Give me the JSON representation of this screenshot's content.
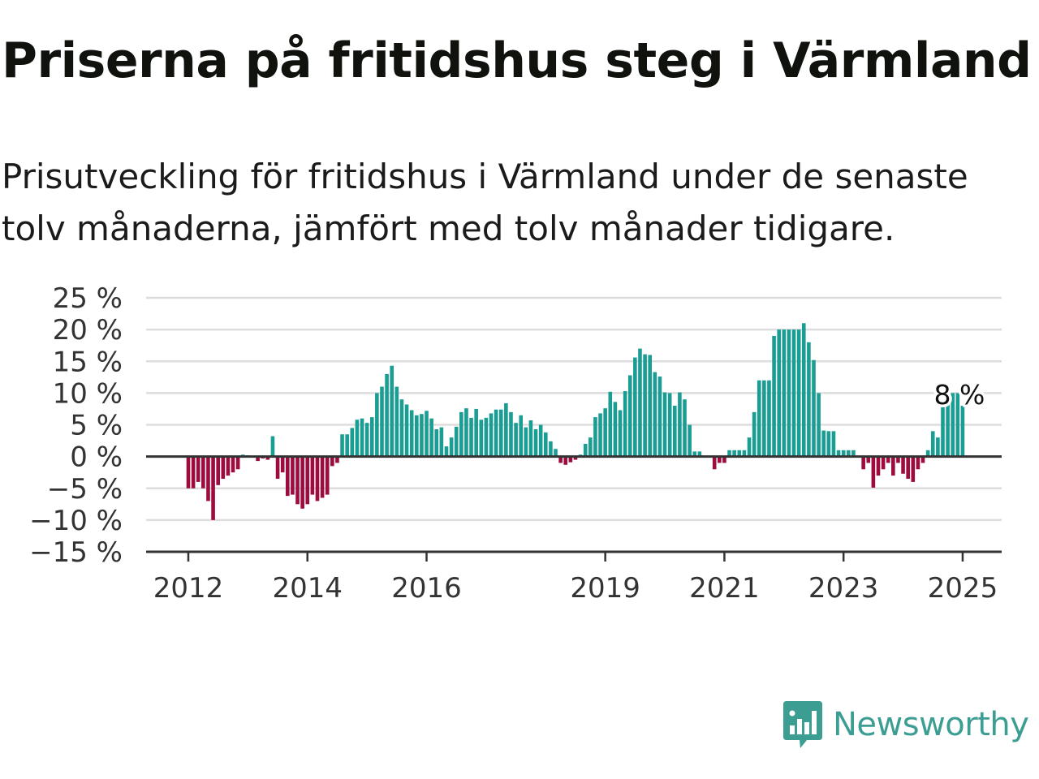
{
  "title": "Priserna på fritidshus steg i Värmland",
  "subtitle": "Prisutveckling för fritidshus i Värmland under de senaste tolv månaderna, jämfört med tolv månader tidigare.",
  "brand": {
    "name": "Newsworthy",
    "color": "#3c9e93"
  },
  "colors": {
    "positive": "#1a9e94",
    "negative": "#9e0b3e",
    "grid": "#dddddd",
    "axis": "#333333"
  },
  "chart_data": {
    "type": "bar",
    "frequency": "monthly",
    "start": "2012-01",
    "end": "2025-01",
    "ylim": [
      -15,
      25
    ],
    "yticks": [
      25,
      20,
      15,
      10,
      5,
      0,
      -5,
      -10,
      -15
    ],
    "ytick_labels": [
      "25 %",
      "20 %",
      "15 %",
      "10 %",
      "5 %",
      "0 %",
      "−5 %",
      "−10 %",
      "−15 %"
    ],
    "xtick_labels": [
      "2012",
      "2014",
      "2016",
      "2019",
      "2021",
      "2023",
      "2025"
    ],
    "grid": true,
    "last_value_label": "8 %",
    "values": [
      -5,
      -5,
      -4,
      -5,
      -7,
      -10,
      -4.5,
      -3.5,
      -3,
      -2.5,
      -2,
      0.3,
      0.2,
      0,
      -0.7,
      -0.3,
      -0.5,
      3.2,
      -3.5,
      -2.5,
      -6.2,
      -6,
      -7.5,
      -8.2,
      -7.5,
      -6,
      -7,
      -6.5,
      -6,
      -1.5,
      -1,
      3.5,
      3.5,
      4.5,
      5.8,
      6,
      5.3,
      6.2,
      10,
      11,
      13,
      14.3,
      11,
      9,
      8.2,
      7.3,
      6.5,
      6.7,
      7.2,
      6,
      4.3,
      4.6,
      1.6,
      3,
      4.7,
      7,
      7.6,
      6.1,
      7.5,
      5.8,
      6.1,
      6.8,
      7.4,
      7.4,
      8.4,
      7,
      5.3,
      6.5,
      4.6,
      5.7,
      4.3,
      5,
      3.8,
      2.4,
      1.2,
      -1,
      -1.3,
      -0.9,
      -0.5,
      0.3,
      2,
      3,
      6.2,
      6.8,
      7.6,
      10.2,
      8.6,
      7.3,
      10.3,
      12.8,
      15.6,
      17,
      16.1,
      16,
      13.3,
      12.6,
      10.1,
      10,
      8,
      10.1,
      9,
      5,
      0.8,
      0.8,
      0,
      0,
      -2,
      -1,
      -1,
      1,
      1,
      1,
      1,
      3,
      7,
      12,
      12,
      12,
      19,
      20,
      20,
      20,
      20,
      20,
      21,
      18,
      15.2,
      10,
      4.1,
      4,
      4,
      1,
      1,
      1,
      1,
      0,
      -2,
      -1,
      -4.9,
      -3,
      -2,
      -1,
      -3,
      -1,
      -2.7,
      -3.5,
      -4,
      -2,
      -1,
      1,
      4,
      3,
      8,
      10,
      10,
      10,
      8
    ]
  }
}
